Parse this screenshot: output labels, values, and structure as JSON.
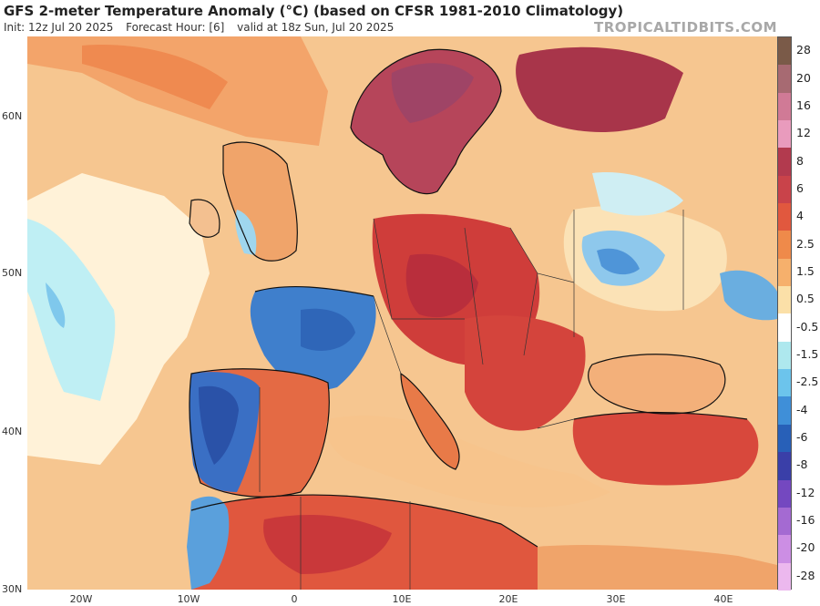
{
  "header": {
    "title": "GFS 2-meter Temperature Anomaly (°C) (based on CFSR 1981-2010 Climatology)",
    "init": "Init: 12z Jul 20 2025",
    "forecast_hour": "Forecast Hour: [6]",
    "valid": "valid at 18z Sun, Jul 20 2025",
    "brand": "TROPICALTIDBITS.COM"
  },
  "axes": {
    "lat_labels": [
      "60N",
      "50N",
      "40N",
      "30N"
    ],
    "lon_labels": [
      "20W",
      "10W",
      "0",
      "10E",
      "20E",
      "30E",
      "40E"
    ]
  },
  "colorbar": {
    "labels": [
      "28",
      "20",
      "16",
      "12",
      "8",
      "6",
      "4",
      "2.5",
      "1.5",
      "0.5",
      "-0.5",
      "-1.5",
      "-2.5",
      "-4",
      "-6",
      "-8",
      "-12",
      "-16",
      "-20",
      "-28"
    ],
    "colors": [
      "#7a5a48",
      "#a76a72",
      "#d07a96",
      "#e99bbd",
      "#b23a4e",
      "#c9434a",
      "#e1583e",
      "#ef8a4a",
      "#f6b06c",
      "#fbe0a8",
      "#ffffff",
      "#aee8ee",
      "#6cc4ec",
      "#3f8fd8",
      "#2860b8",
      "#3a3fa8",
      "#7448c0",
      "#a46ad2",
      "#cc8ee4",
      "#ecb8ee"
    ]
  }
}
